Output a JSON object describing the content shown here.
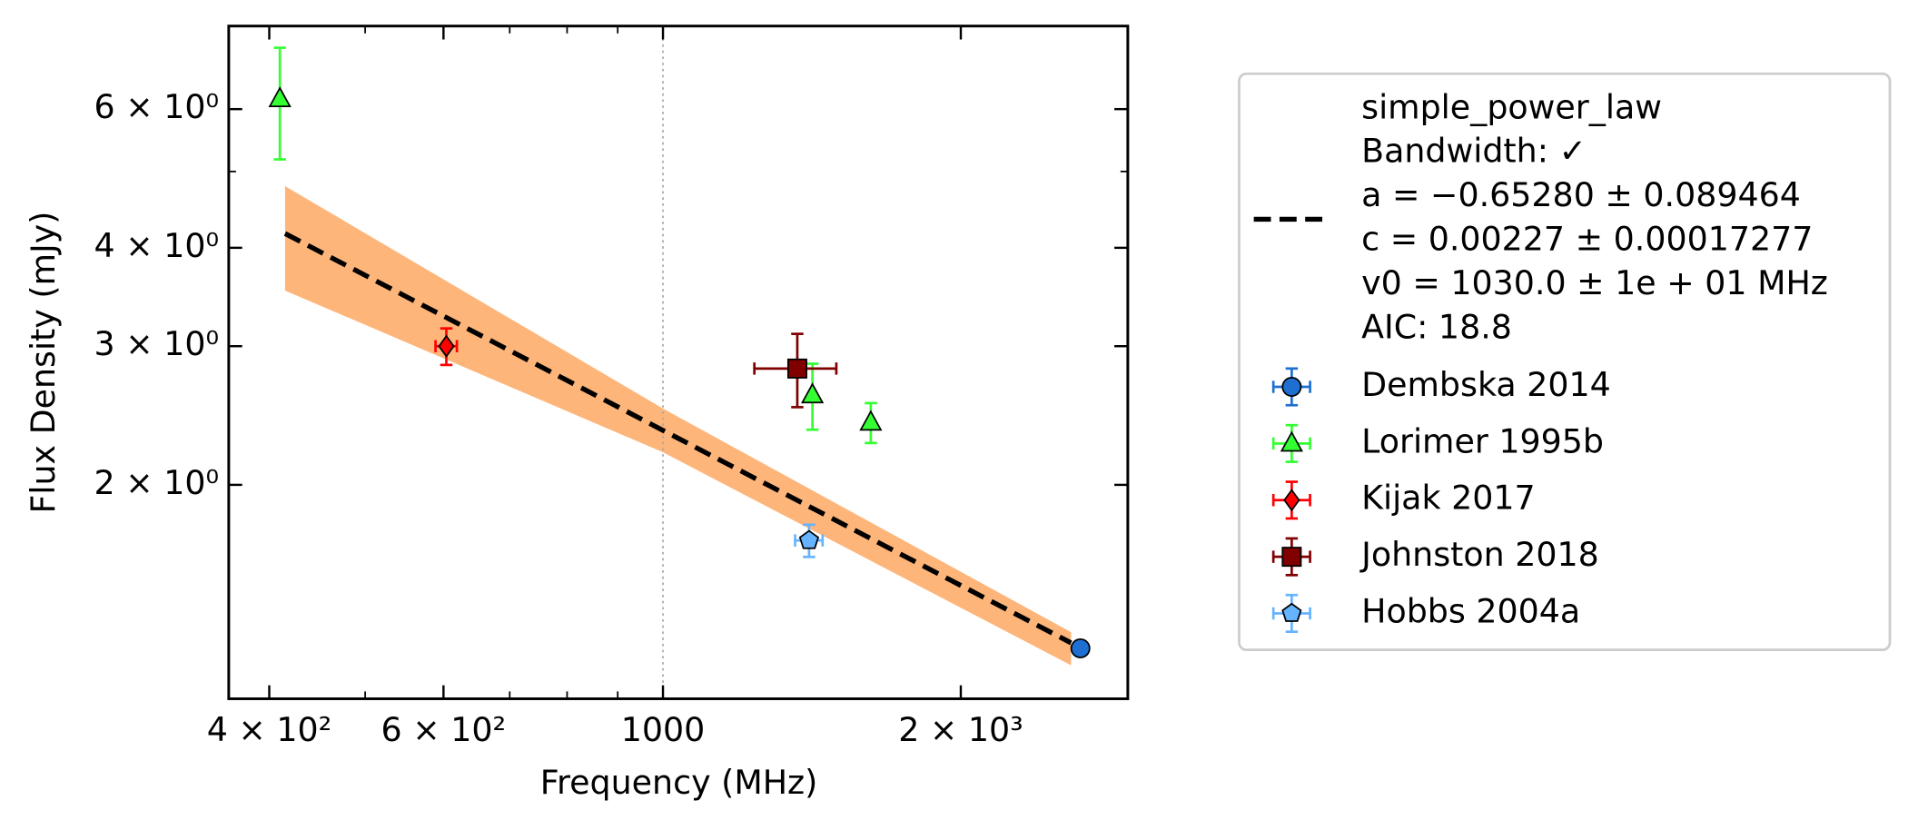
{
  "chart_data": {
    "type": "scatter",
    "xlabel": "Frequency (MHz)",
    "ylabel": "Flux Density (mJy)",
    "xscale": "log",
    "yscale": "log",
    "xlim": [
      364,
      2950
    ],
    "ylim": [
      1.07,
      7.65
    ],
    "xticks": [
      {
        "value": 400,
        "label": "4 × 10²"
      },
      {
        "value": 600,
        "label": "6 × 10²"
      },
      1000,
      {
        "value": 2000,
        "label": "2 × 10³"
      }
    ],
    "xticks_minor": [
      500,
      700,
      800,
      900
    ],
    "yticks": [
      {
        "value": 2,
        "label": "2 × 10⁰"
      },
      {
        "value": 3,
        "label": "3 × 10⁰"
      },
      {
        "value": 4,
        "label": "4 × 10⁰"
      },
      {
        "value": 6,
        "label": "6 × 10⁰"
      }
    ],
    "yticks_minor": [
      5
    ],
    "vline": 1000,
    "fit": {
      "label": [
        "simple_power_law",
        "Bandwidth: ✓",
        "a = −0.65280 ± 0.089464",
        "c = 0.00227 ± 0.00017277",
        "v0 = 1030.0 ± 1e + 01 MHz",
        "AIC: 18.8"
      ],
      "color": "#000000",
      "x": [
        415,
        2585
      ],
      "y": [
        4.17,
        1.26
      ],
      "band_color": "#fdb57a",
      "band_x": [
        415,
        1000,
        2585
      ],
      "band_lower": [
        3.53,
        2.2,
        1.18
      ],
      "band_upper": [
        4.79,
        2.5,
        1.3
      ]
    },
    "series": [
      {
        "name": "Dembska 2014",
        "color": "#1f6fd0",
        "marker": "circle",
        "x": [
          2642
        ],
        "y": [
          1.24
        ],
        "yerr": [
          0.02
        ],
        "xerr": [
          26
        ]
      },
      {
        "name": "Lorimer 1995b",
        "color": "#33ff33",
        "marker": "triangle",
        "x": [
          410,
          1416,
          1622
        ],
        "y": [
          6.18,
          2.6,
          2.4
        ],
        "yerr": [
          1.0,
          0.25,
          0.14
        ],
        "xerr": [
          null,
          null,
          null
        ]
      },
      {
        "name": "Kijak 2017",
        "color": "#ff0000",
        "marker": "diamond",
        "x": [
          604
        ],
        "y": [
          3.0
        ],
        "yerr": [
          0.16
        ],
        "xerr": [
          15
        ]
      },
      {
        "name": "Johnston 2018",
        "color": "#800000",
        "marker": "square",
        "x": [
          1367
        ],
        "y": [
          2.81
        ],
        "yerr": [
          0.3
        ],
        "xerr": [
          130
        ]
      },
      {
        "name": "Hobbs 2004a",
        "color": "#66b3ff",
        "marker": "pentagon",
        "x": [
          1405
        ],
        "y": [
          1.7
        ],
        "yerr": [
          0.08
        ],
        "xerr": [
          45
        ]
      }
    ]
  }
}
